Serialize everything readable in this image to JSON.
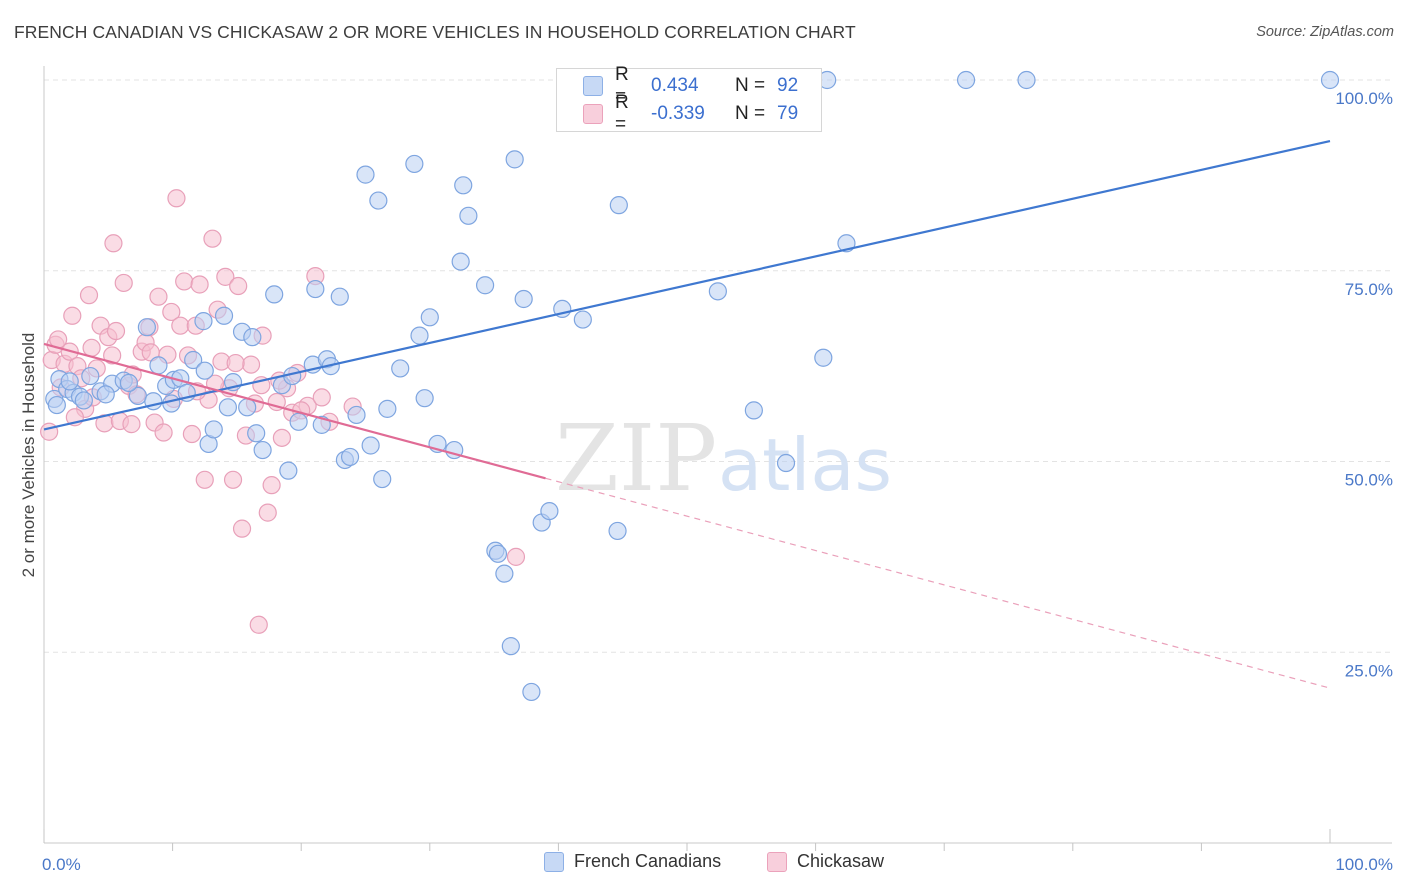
{
  "title": "FRENCH CANADIAN VS CHICKASAW 2 OR MORE VEHICLES IN HOUSEHOLD CORRELATION CHART",
  "source": "Source: ZipAtlas.com",
  "watermark": {
    "part1": "ZIP",
    "part2": "atlas"
  },
  "legend": {
    "rows": [
      {
        "r_label": "R =",
        "r_value": "0.434",
        "n_label": "N =",
        "n_value": "92"
      },
      {
        "r_label": "R =",
        "r_value": "-0.339",
        "n_label": "N =",
        "n_value": "79"
      }
    ]
  },
  "bottom_legend": {
    "series1": "French Canadians",
    "series2": "Chickasaw"
  },
  "colors": {
    "blue": "#4f86d6",
    "blue_fill": "#b9cff2",
    "pink": "#e06b95",
    "pink_fill": "#f5bfd0",
    "tick_blue": "#4a78c8",
    "grid": "#e3e3e3"
  },
  "chart_data": {
    "type": "scatter",
    "title": "FRENCH CANADIAN VS CHICKASAW 2 OR MORE VEHICLES IN HOUSEHOLD CORRELATION CHART",
    "xlabel": "",
    "ylabel": "2 or more Vehicles in Household",
    "xlim": [
      0,
      100
    ],
    "ylim": [
      0,
      100
    ],
    "x_tick_labels": [
      "0.0%",
      "100.0%"
    ],
    "y_tick_labels": [
      "100.0%",
      "75.0%",
      "50.0%",
      "25.0%"
    ],
    "y_ticks": [
      100,
      75,
      50,
      25
    ],
    "grid": true,
    "legend_position": "top-center",
    "series": [
      {
        "name": "French Canadians",
        "color": "#4f86d6",
        "r": 0.434,
        "n": 92,
        "trend": {
          "x": [
            0,
            100
          ],
          "y": [
            54.2,
            92.0
          ]
        },
        "points": [
          [
            0.8,
            58.2
          ],
          [
            1.2,
            60.8
          ],
          [
            1.8,
            59.5
          ],
          [
            2.3,
            59.0
          ],
          [
            2.8,
            58.5
          ],
          [
            3.6,
            61.2
          ],
          [
            4.4,
            59.2
          ],
          [
            5.3,
            60.2
          ],
          [
            6.2,
            60.6
          ],
          [
            7.3,
            58.6
          ],
          [
            8.0,
            67.6
          ],
          [
            8.5,
            57.9
          ],
          [
            8.9,
            62.6
          ],
          [
            9.5,
            59.9
          ],
          [
            10.1,
            60.7
          ],
          [
            10.6,
            60.9
          ],
          [
            11.1,
            59.0
          ],
          [
            11.6,
            63.3
          ],
          [
            12.4,
            68.4
          ],
          [
            12.5,
            61.9
          ],
          [
            12.8,
            52.3
          ],
          [
            13.2,
            54.2
          ],
          [
            14.0,
            69.1
          ],
          [
            14.3,
            57.1
          ],
          [
            14.7,
            60.4
          ],
          [
            15.4,
            67.0
          ],
          [
            15.8,
            57.1
          ],
          [
            16.2,
            66.3
          ],
          [
            16.5,
            53.7
          ],
          [
            17.0,
            51.5
          ],
          [
            17.9,
            71.9
          ],
          [
            18.5,
            60.0
          ],
          [
            19.0,
            48.8
          ],
          [
            19.3,
            61.2
          ],
          [
            19.8,
            55.2
          ],
          [
            20.9,
            62.7
          ],
          [
            21.1,
            72.6
          ],
          [
            21.6,
            54.8
          ],
          [
            22.0,
            63.4
          ],
          [
            22.3,
            62.5
          ],
          [
            23.0,
            71.6
          ],
          [
            23.4,
            50.2
          ],
          [
            23.8,
            50.6
          ],
          [
            24.3,
            56.1
          ],
          [
            25.0,
            87.6
          ],
          [
            25.4,
            52.1
          ],
          [
            26.0,
            84.2
          ],
          [
            26.3,
            47.7
          ],
          [
            26.7,
            56.9
          ],
          [
            27.7,
            62.2
          ],
          [
            28.8,
            89.0
          ],
          [
            29.2,
            66.5
          ],
          [
            29.6,
            58.3
          ],
          [
            30.0,
            68.9
          ],
          [
            30.6,
            52.3
          ],
          [
            31.9,
            51.5
          ],
          [
            32.4,
            76.2
          ],
          [
            32.6,
            86.2
          ],
          [
            33.0,
            82.2
          ],
          [
            34.3,
            73.1
          ],
          [
            35.1,
            38.3
          ],
          [
            35.3,
            37.9
          ],
          [
            35.8,
            35.3
          ],
          [
            36.3,
            25.8
          ],
          [
            36.6,
            89.6
          ],
          [
            37.3,
            71.3
          ],
          [
            37.9,
            19.8
          ],
          [
            38.7,
            42.0
          ],
          [
            39.3,
            43.5
          ],
          [
            40.3,
            70.0
          ],
          [
            41.9,
            68.6
          ],
          [
            44.6,
            40.9
          ],
          [
            44.7,
            83.6
          ],
          [
            47.1,
            100.0
          ],
          [
            49.4,
            100.0
          ],
          [
            52.4,
            72.3
          ],
          [
            53.5,
            100.0
          ],
          [
            55.2,
            56.7
          ],
          [
            57.7,
            49.8
          ],
          [
            57.9,
            100.0
          ],
          [
            60.6,
            63.6
          ],
          [
            60.9,
            100.0
          ],
          [
            62.4,
            78.6
          ],
          [
            71.7,
            100.0
          ],
          [
            76.4,
            100.0
          ],
          [
            100.0,
            100.0
          ],
          [
            1.0,
            57.4
          ],
          [
            2.0,
            60.5
          ],
          [
            3.1,
            58.0
          ],
          [
            4.8,
            58.8
          ],
          [
            6.6,
            60.3
          ],
          [
            9.9,
            57.6
          ]
        ]
      },
      {
        "name": "Chickasaw",
        "color": "#e06b95",
        "r": -0.339,
        "n": 79,
        "trend": {
          "x": [
            0,
            39
          ],
          "y": [
            65.4,
            47.8
          ]
        },
        "trend_dashed": {
          "x": [
            39,
            100
          ],
          "y": [
            47.8,
            20.3
          ]
        },
        "points": [
          [
            0.4,
            53.9
          ],
          [
            0.6,
            63.3
          ],
          [
            0.9,
            65.3
          ],
          [
            1.3,
            59.7
          ],
          [
            1.6,
            62.8
          ],
          [
            2.0,
            64.4
          ],
          [
            2.2,
            69.1
          ],
          [
            2.6,
            62.5
          ],
          [
            2.9,
            60.9
          ],
          [
            3.2,
            56.9
          ],
          [
            3.5,
            71.8
          ],
          [
            3.8,
            58.4
          ],
          [
            4.1,
            62.2
          ],
          [
            4.4,
            67.8
          ],
          [
            4.7,
            55.0
          ],
          [
            5.0,
            66.3
          ],
          [
            5.3,
            63.9
          ],
          [
            5.6,
            67.1
          ],
          [
            5.9,
            55.3
          ],
          [
            6.2,
            73.4
          ],
          [
            6.6,
            59.9
          ],
          [
            6.9,
            61.4
          ],
          [
            7.2,
            58.8
          ],
          [
            7.6,
            64.4
          ],
          [
            7.9,
            65.6
          ],
          [
            8.2,
            67.6
          ],
          [
            8.6,
            55.1
          ],
          [
            8.9,
            71.6
          ],
          [
            9.3,
            53.8
          ],
          [
            9.6,
            64.0
          ],
          [
            9.9,
            69.6
          ],
          [
            10.3,
            84.5
          ],
          [
            10.6,
            67.8
          ],
          [
            10.9,
            73.6
          ],
          [
            11.2,
            63.9
          ],
          [
            11.5,
            53.6
          ],
          [
            11.8,
            67.8
          ],
          [
            12.1,
            73.2
          ],
          [
            12.5,
            47.6
          ],
          [
            12.8,
            58.1
          ],
          [
            13.1,
            79.2
          ],
          [
            13.5,
            69.9
          ],
          [
            13.8,
            63.1
          ],
          [
            14.1,
            74.2
          ],
          [
            14.4,
            59.6
          ],
          [
            14.7,
            47.6
          ],
          [
            15.1,
            73.0
          ],
          [
            15.4,
            41.2
          ],
          [
            15.7,
            53.4
          ],
          [
            16.1,
            62.7
          ],
          [
            16.4,
            57.6
          ],
          [
            16.7,
            28.6
          ],
          [
            17.0,
            66.5
          ],
          [
            17.4,
            43.3
          ],
          [
            17.7,
            46.9
          ],
          [
            18.1,
            57.8
          ],
          [
            18.5,
            53.1
          ],
          [
            18.9,
            59.6
          ],
          [
            19.3,
            56.4
          ],
          [
            19.7,
            61.6
          ],
          [
            20.5,
            57.3
          ],
          [
            21.1,
            74.3
          ],
          [
            21.6,
            58.4
          ],
          [
            22.2,
            55.2
          ],
          [
            24.0,
            57.2
          ],
          [
            36.7,
            37.5
          ],
          [
            1.1,
            66.0
          ],
          [
            2.4,
            55.8
          ],
          [
            3.7,
            64.9
          ],
          [
            5.4,
            78.6
          ],
          [
            6.8,
            54.9
          ],
          [
            8.3,
            64.3
          ],
          [
            10.1,
            58.2
          ],
          [
            11.9,
            59.2
          ],
          [
            13.3,
            60.2
          ],
          [
            14.9,
            62.9
          ],
          [
            16.9,
            60.0
          ],
          [
            18.3,
            60.6
          ],
          [
            20.0,
            56.7
          ]
        ]
      }
    ]
  }
}
